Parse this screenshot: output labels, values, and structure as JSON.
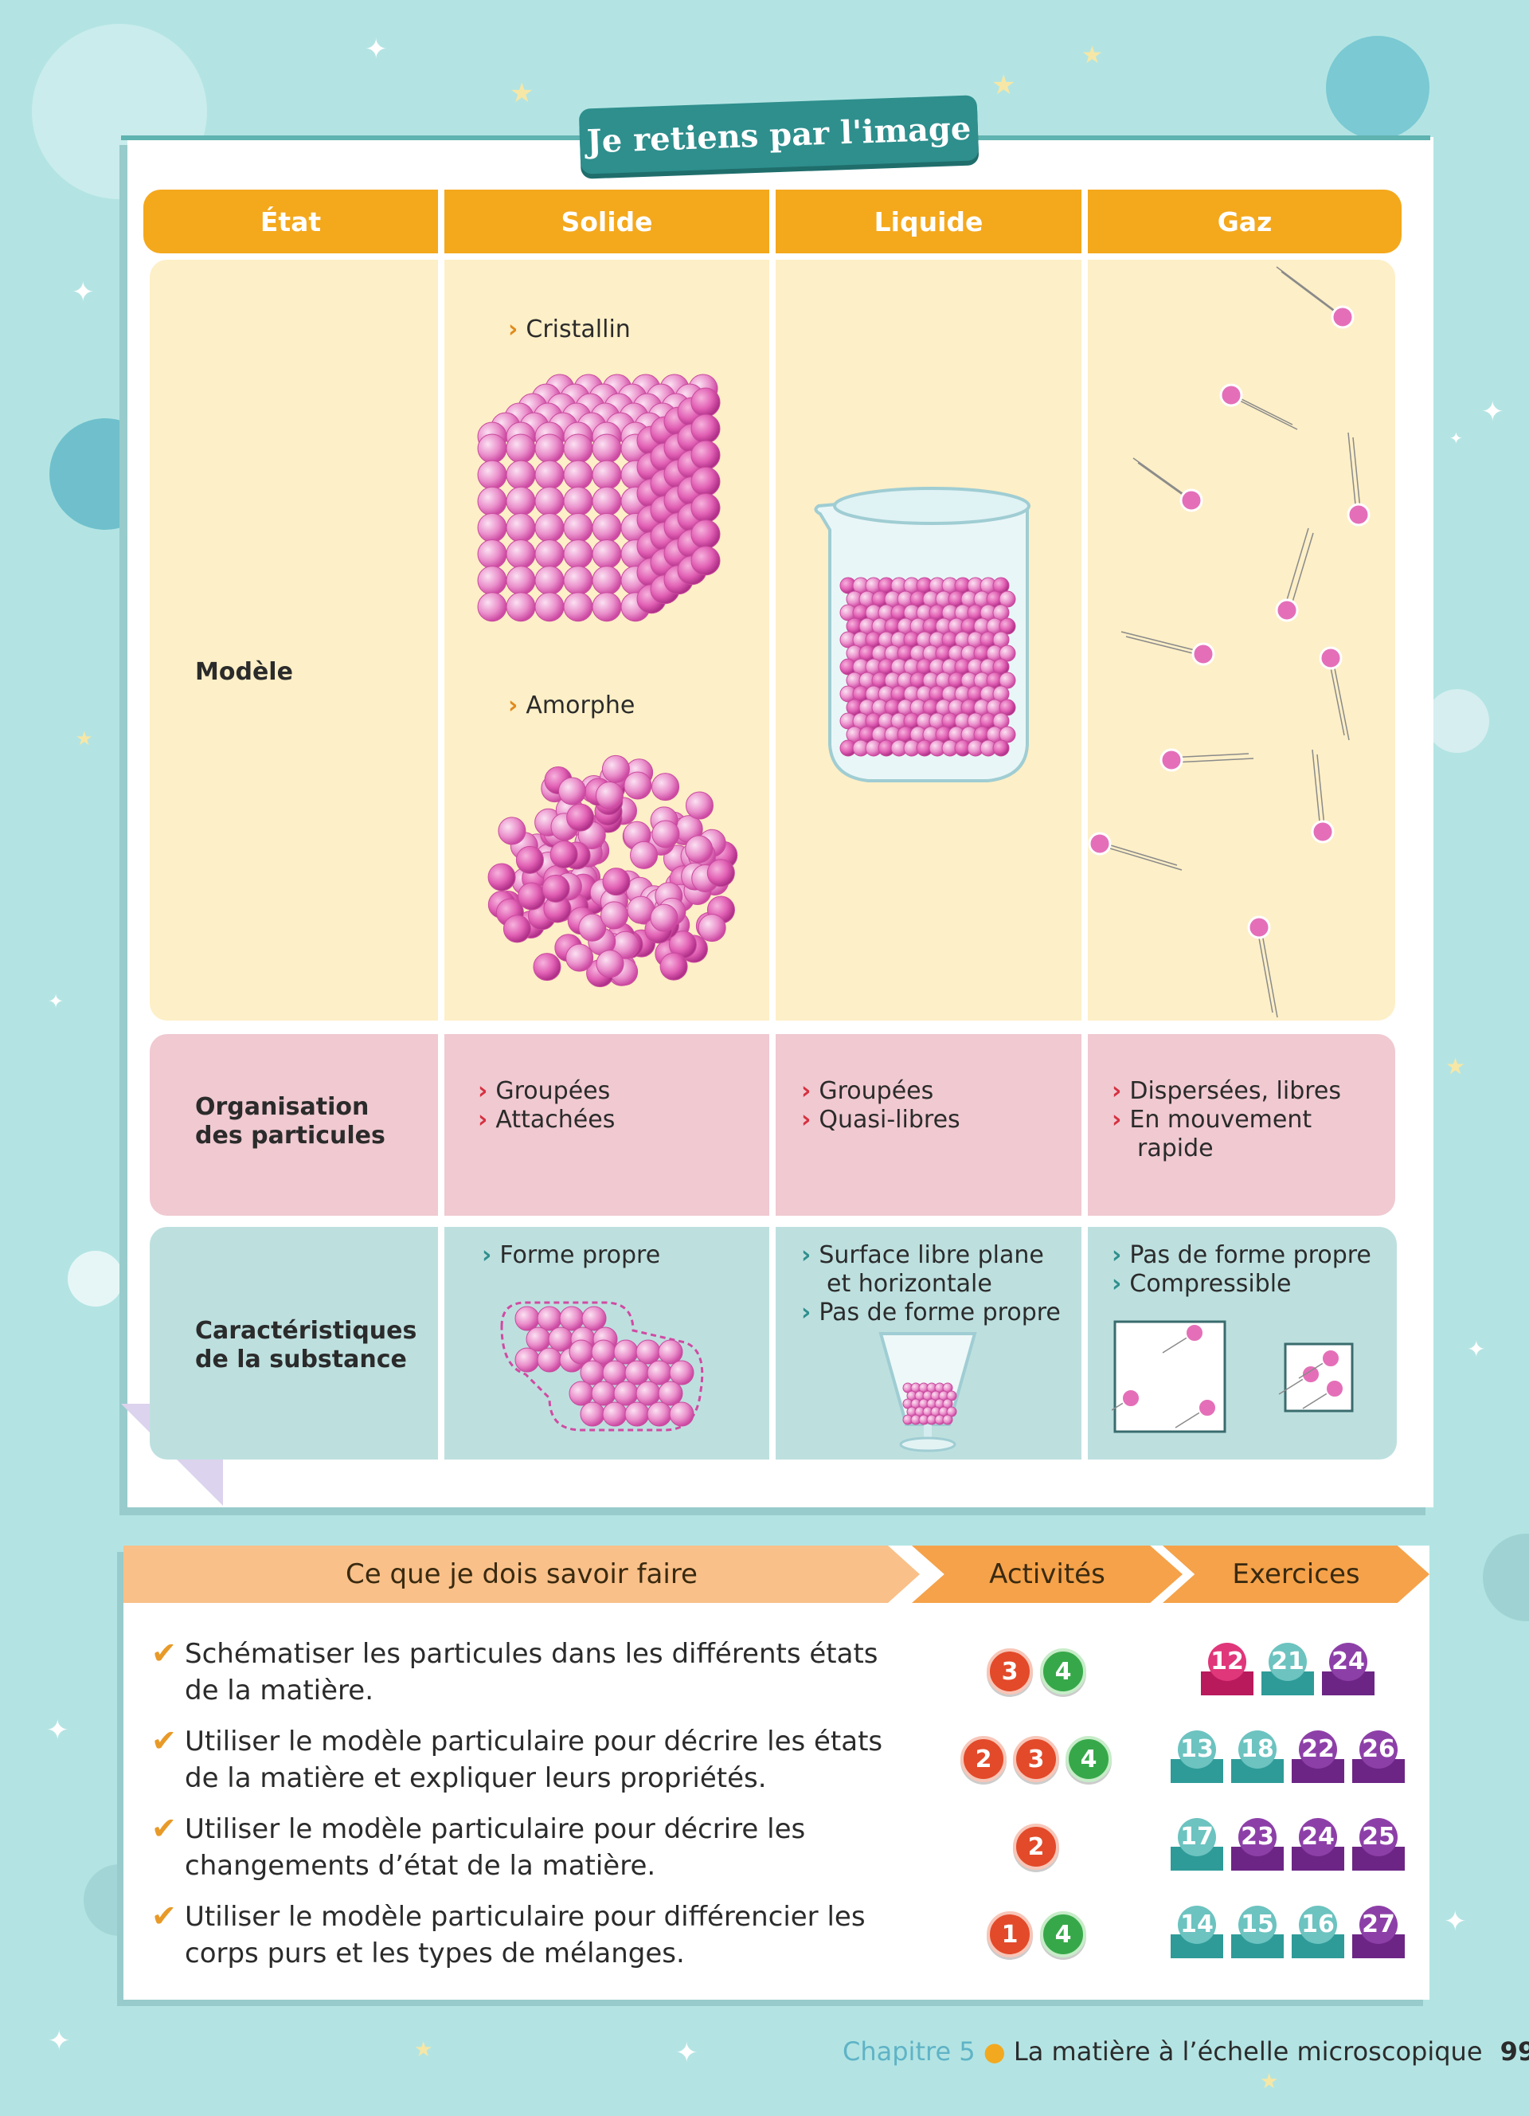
{
  "title": "Je retiens par l'image",
  "table": {
    "headers": [
      "État",
      "Solide",
      "Liquide",
      "Gaz"
    ],
    "rows": {
      "model": {
        "label": "Modèle",
        "solid_crystalline": "Cristallin",
        "solid_amorphous": "Amorphe"
      },
      "organisation": {
        "label_line1": "Organisation",
        "label_line2": "des particules",
        "solid": [
          "Groupées",
          "Attachées"
        ],
        "liquid": [
          "Groupées",
          "Quasi-libres"
        ],
        "gas": [
          "Dispersées, libres",
          "En mouvement",
          "rapide"
        ]
      },
      "characteristics": {
        "label_line1": "Caractéristiques",
        "label_line2": "de la substance",
        "solid": [
          "Forme propre"
        ],
        "liquid": [
          "Surface libre plane",
          "et horizontale",
          "Pas de forme propre"
        ],
        "gas": [
          "Pas de forme propre",
          "Compressible"
        ]
      }
    }
  },
  "skills": {
    "headers": [
      "Ce que je dois savoir faire",
      "Activités",
      "Exercices"
    ],
    "items": [
      {
        "line1": "Schématiser les particules dans les différents états",
        "line2": "de la matière.",
        "activities": [
          "3",
          "4"
        ],
        "exercises": [
          "12",
          "21",
          "24"
        ]
      },
      {
        "line1": "Utiliser le modèle particulaire pour décrire les états",
        "line2": "de la matière et expliquer leurs propriétés.",
        "activities": [
          "2",
          "3",
          "4"
        ],
        "exercises": [
          "13",
          "18",
          "22",
          "26"
        ]
      },
      {
        "line1": "Utiliser le modèle particulaire pour décrire les",
        "line2": "changements d’état de la matière.",
        "activities": [
          "2"
        ],
        "exercises": [
          "17",
          "23",
          "24",
          "25"
        ]
      },
      {
        "line1": "Utiliser le modèle particulaire pour différencier les",
        "line2": "corps purs et les types de mélanges.",
        "activities": [
          "1",
          "4"
        ],
        "exercises": [
          "14",
          "15",
          "16",
          "27"
        ]
      }
    ]
  },
  "footer": {
    "chapter": "Chapitre 5",
    "title": "La matière à l’échelle microscopique",
    "page": "99"
  },
  "colors": {
    "background": "#b3e4e3",
    "header_orange": "#f4a81c",
    "title_teal": "#2e8f8d",
    "particle_pink": "#e46fb8"
  }
}
